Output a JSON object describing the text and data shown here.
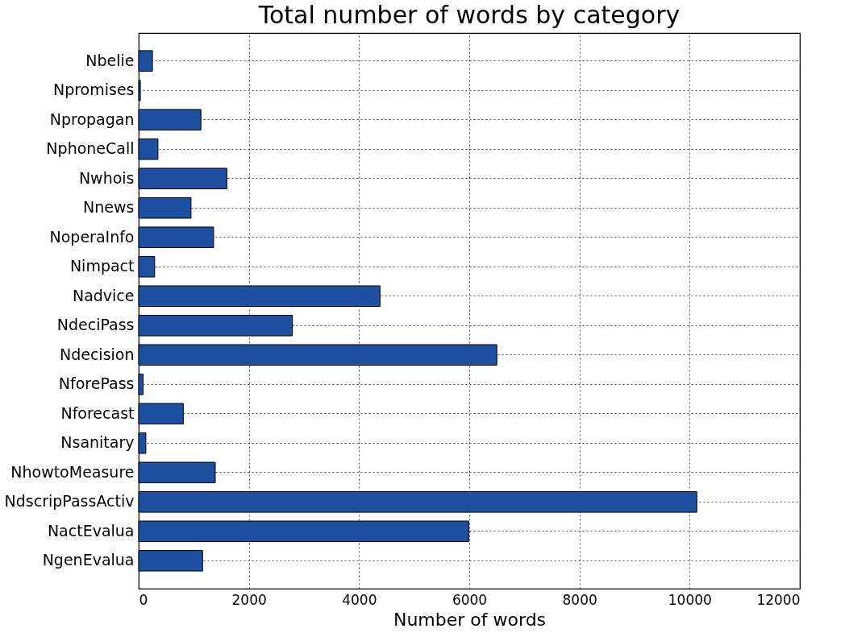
{
  "chart_data": {
    "type": "bar",
    "orientation": "horizontal",
    "title": "Total number of words by category",
    "xlabel": "Number of words",
    "categories": [
      "Nbelie",
      "Npromises",
      "Npropagan",
      "NphoneCall",
      "Nwhois",
      "Nnews",
      "NoperaInfo",
      "Nimpact",
      "Nadvice",
      "NdeciPass",
      "Ndecision",
      "NforePass",
      "Nforecast",
      "Nsanitary",
      "NhowtoMeasure",
      "NdscripPassActiv",
      "NactEvalua",
      "NgenEvalua"
    ],
    "values": [
      250,
      30,
      1130,
      350,
      1600,
      950,
      1360,
      290,
      4380,
      2790,
      6500,
      80,
      810,
      130,
      1390,
      10130,
      5990,
      1160
    ],
    "color": "#1f4fa0",
    "xlim": [
      0,
      12000
    ],
    "xticks": [
      0,
      2000,
      4000,
      6000,
      8000,
      10000,
      12000
    ],
    "grid": true
  }
}
